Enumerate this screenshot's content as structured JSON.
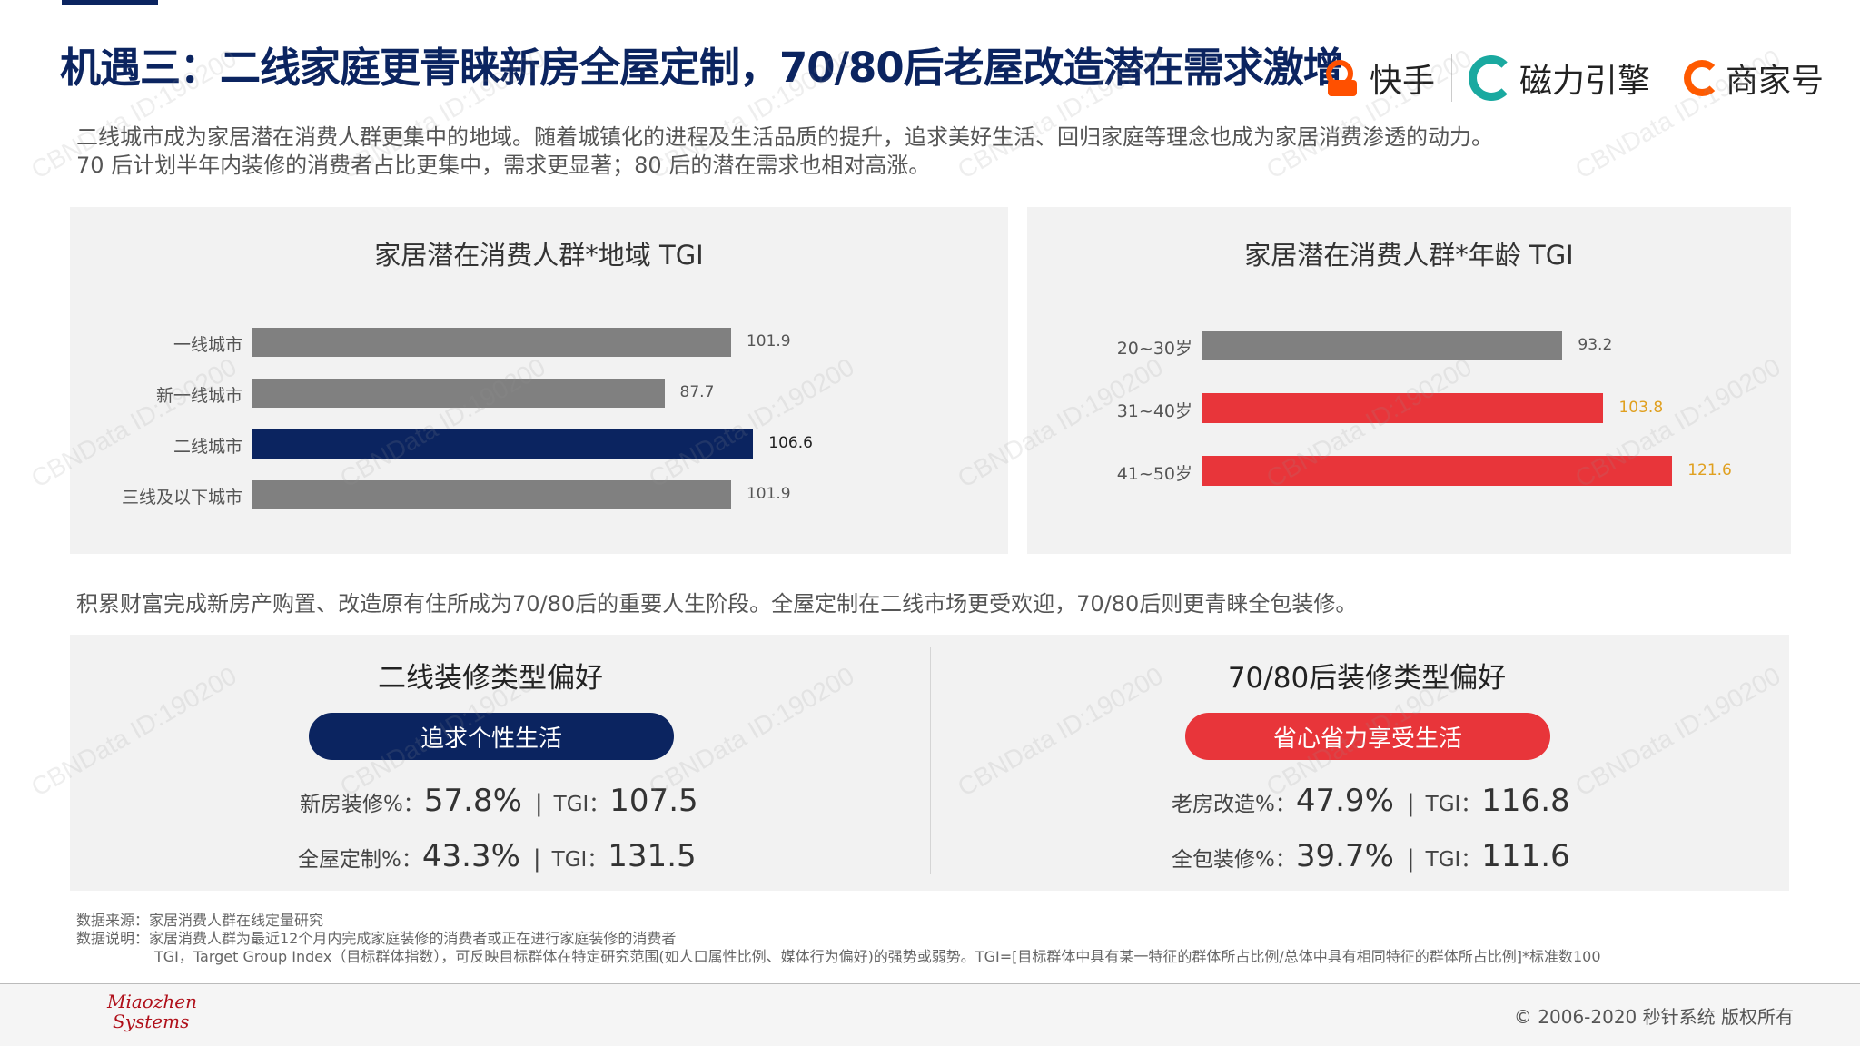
{
  "page": {
    "title": "机遇三：二线家庭更青睐新房全屋定制，70/80后老屋改造潜在需求激增",
    "intro_line1": "二线城市成为家居潜在消费人群更集中的地域。随着城镇化的进程及生活品质的提升，追求美好生活、回归家庭等理念也成为家居消费渗透的动力。",
    "intro_line2": "70 后计划半年内装修的消费者占比更集中，需求更显著；80 后的潜在需求也相对高涨。",
    "mid_text": "积累财富完成新房产购置、改造原有住所成为70/80后的重要人生阶段。全屋定制在二线市场更受欢迎，70/80后则更青睐全包装修。"
  },
  "logos": {
    "kuaishou": "快手",
    "cili": "磁力引擎",
    "shangjia": "商家号"
  },
  "chart_data": [
    {
      "type": "bar",
      "orientation": "horizontal",
      "title": "家居潜在消费人群*地域 TGI",
      "categories": [
        "一线城市",
        "新一线城市",
        "二线城市",
        "三线及以下城市"
      ],
      "values": [
        101.9,
        87.7,
        106.6,
        101.9
      ],
      "value_labels": [
        "101.9",
        "87.7",
        "106.6",
        "101.9"
      ],
      "colors": [
        "#808080",
        "#808080",
        "#0b2460",
        "#808080"
      ],
      "label_colors": [
        "#555555",
        "#555555",
        "#222222",
        "#555555"
      ],
      "xlim": [
        0,
        140
      ]
    },
    {
      "type": "bar",
      "orientation": "horizontal",
      "title": "家居潜在消费人群*年龄 TGI",
      "categories": [
        "20~30岁",
        "31~40岁",
        "41~50岁"
      ],
      "values": [
        93.2,
        103.8,
        121.6
      ],
      "value_labels": [
        "93.2",
        "103.8",
        "121.6"
      ],
      "colors": [
        "#808080",
        "#e8353a",
        "#e8353a"
      ],
      "label_colors": [
        "#555555",
        "#e0a020",
        "#e0a020"
      ],
      "xlim": [
        0,
        150
      ]
    }
  ],
  "prefs": {
    "left": {
      "title": "二线装修类型偏好",
      "pill": "追求个性生活",
      "pill_color": "#0b2460",
      "row1": {
        "label": "新房装修%：",
        "value": "57.8%",
        "sep": "|",
        "tgi_label": "TGI：",
        "tgi": "107.5"
      },
      "row2": {
        "label": "全屋定制%：",
        "value": "43.3%",
        "sep": "|",
        "tgi_label": "TGI：",
        "tgi": "131.5"
      }
    },
    "right": {
      "title": "70/80后装修类型偏好",
      "pill": "省心省力享受生活",
      "pill_color": "#e8353a",
      "row1": {
        "label": "老房改造%：",
        "value": "47.9%",
        "sep": "|",
        "tgi_label": "TGI：",
        "tgi": "116.8"
      },
      "row2": {
        "label": "全包装修%：",
        "value": "39.7%",
        "sep": "|",
        "tgi_label": "TGI：",
        "tgi": "111.6"
      }
    }
  },
  "notes": {
    "source": "数据来源：家居消费人群在线定量研究",
    "explain": "数据说明：家居消费人群为最近12个月内完成家庭装修的消费者或正在进行家庭装修的消费者",
    "tgi": "TGI，Target Group Index（目标群体指数），可反映目标群体在特定研究范围(如人口属性比例、媒体行为偏好)的强势或弱势。TGI=[目标群体中具有某一特征的群体所占比例/总体中具有相同特征的群体所占比例]*标准数100"
  },
  "footer": {
    "logo_line1": "Miaozhen",
    "logo_line2": "Systems",
    "copyright": "© 2006-2020 秒针系统 版权所有"
  },
  "watermark": "CBNData ID:190200"
}
